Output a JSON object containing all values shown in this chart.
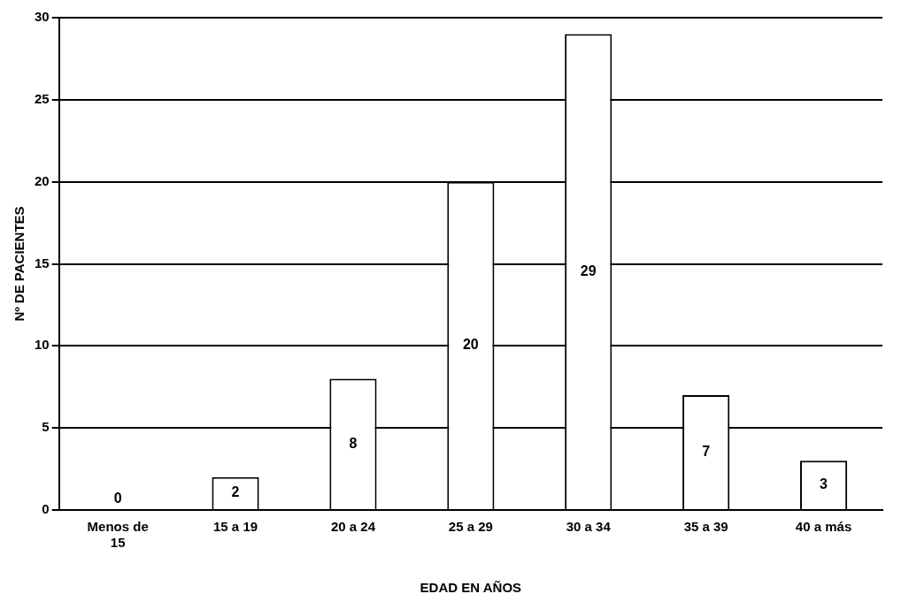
{
  "chart_data": {
    "type": "bar",
    "xlabel": "EDAD EN AÑOS",
    "ylabel": "Nº DE PACIENTES",
    "categories": [
      "Menos de 15",
      "15 a 19",
      "20 a 24",
      "25 a 29",
      "30 a 34",
      "35 a 39",
      "40 a más"
    ],
    "values": [
      0,
      2,
      8,
      20,
      29,
      7,
      3
    ],
    "color": "#ffffff",
    "ylim": [
      0,
      30
    ],
    "yticks": [
      0,
      5,
      10,
      15,
      20,
      25,
      30
    ],
    "grid": "y",
    "legend": false,
    "data_labels": true
  }
}
